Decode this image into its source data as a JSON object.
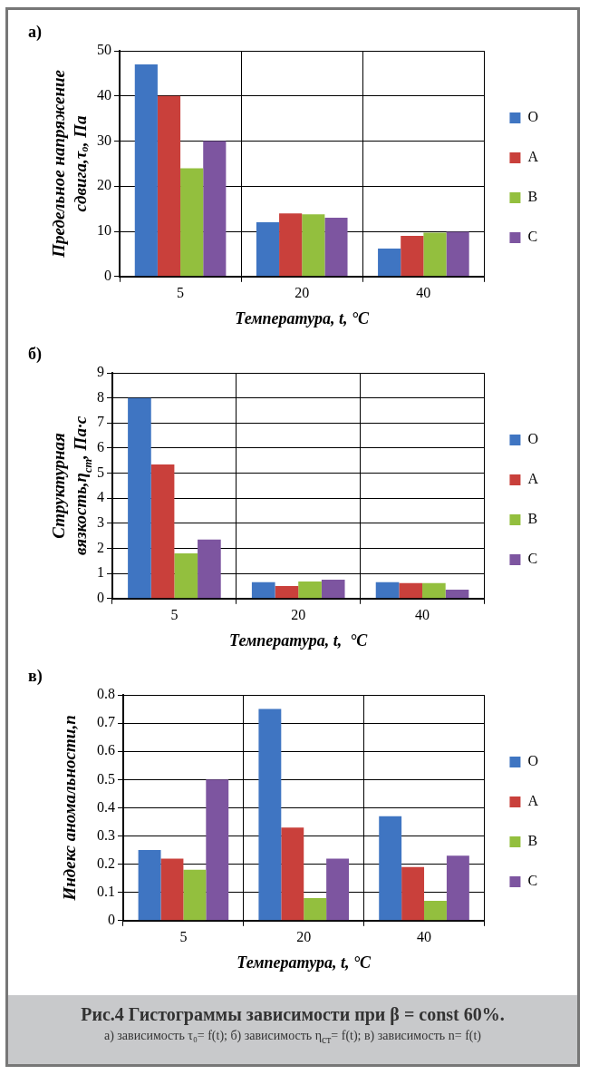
{
  "chart_data": [
    {
      "type": "bar",
      "annotations": [
        "а)"
      ],
      "ylabel": "Предельное напряжение сдвига,τₒ, Па",
      "xlabel": "Температура, t, °C",
      "categories": [
        "5",
        "20",
        "40"
      ],
      "ylim": [
        0,
        50
      ],
      "yticks": [
        0,
        10,
        20,
        30,
        40,
        50
      ],
      "grid": true,
      "legend": "right",
      "series": [
        {
          "name": "O",
          "color": "#3f75c2",
          "values": [
            47,
            12,
            6.2
          ]
        },
        {
          "name": "A",
          "color": "#c9403b",
          "values": [
            40,
            14,
            9
          ]
        },
        {
          "name": "B",
          "color": "#93bf3e",
          "values": [
            24,
            13.8,
            9.7
          ]
        },
        {
          "name": "C",
          "color": "#7d55a0",
          "values": [
            30,
            13,
            9.9
          ]
        }
      ]
    },
    {
      "type": "bar",
      "annotations": [
        "б)"
      ],
      "ylabel": "Структурная вязкость,η$_{ст}$, Па·с",
      "xlabel": "Температура, t,  °C",
      "categories": [
        "5",
        "20",
        "40"
      ],
      "ylim": [
        0,
        9
      ],
      "yticks": [
        0,
        1,
        2,
        3,
        4,
        5,
        6,
        7,
        8,
        9
      ],
      "grid": true,
      "legend": "right",
      "series": [
        {
          "name": "O",
          "color": "#3f75c2",
          "values": [
            8,
            0.65,
            0.65
          ]
        },
        {
          "name": "A",
          "color": "#c9403b",
          "values": [
            5.35,
            0.5,
            0.62
          ]
        },
        {
          "name": "B",
          "color": "#93bf3e",
          "values": [
            1.8,
            0.68,
            0.62
          ]
        },
        {
          "name": "C",
          "color": "#7d55a0",
          "values": [
            2.35,
            0.75,
            0.35
          ]
        }
      ]
    },
    {
      "type": "bar",
      "annotations": [
        "в)",
        "Рис.4 Гистограммы зависимости при  β = const 60%.",
        "а) зависимость  τ₀= f(t); б) зависимость η$_{ст}$= f(t); в) зависимость n= f(t)"
      ],
      "ylabel": "Индекс аномальности,n",
      "xlabel": "Температура, t, °C",
      "categories": [
        "5",
        "20",
        "40"
      ],
      "ylim": [
        0,
        0.8
      ],
      "yticks": [
        0,
        0.1,
        0.2,
        0.3,
        0.4,
        0.5,
        0.6,
        0.7,
        0.8
      ],
      "grid": true,
      "legend": "right",
      "series": [
        {
          "name": "O",
          "color": "#3f75c2",
          "values": [
            0.25,
            0.75,
            0.37
          ]
        },
        {
          "name": "A",
          "color": "#c9403b",
          "values": [
            0.22,
            0.33,
            0.19
          ]
        },
        {
          "name": "B",
          "color": "#93bf3e",
          "values": [
            0.18,
            0.08,
            0.07
          ]
        },
        {
          "name": "C",
          "color": "#7d55a0",
          "values": [
            0.5,
            0.22,
            0.23
          ]
        }
      ]
    }
  ]
}
